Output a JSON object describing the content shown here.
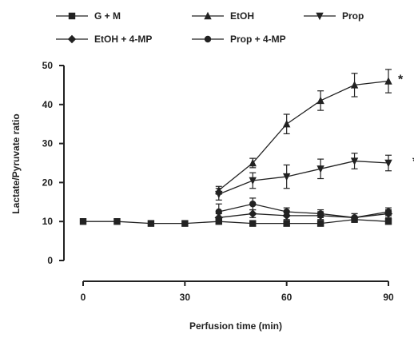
{
  "chart_data": {
    "type": "line",
    "xlabel": "Perfusion time (min)",
    "ylabel": "Lactate/Pyruvate ratio",
    "xlim": [
      0,
      90
    ],
    "ylim": [
      0,
      50
    ],
    "xticks": [
      0,
      30,
      60,
      90
    ],
    "yticks": [
      0,
      10,
      20,
      30,
      40,
      50
    ],
    "grid": false,
    "legend_position": "top",
    "series": [
      {
        "name": "G + M",
        "marker": "square",
        "x": [
          0,
          10,
          20,
          30,
          40,
          50,
          60,
          70,
          80,
          90
        ],
        "y": [
          10,
          10,
          9.5,
          9.5,
          10,
          9.5,
          9.5,
          9.5,
          10.5,
          10
        ],
        "err": [
          0,
          0,
          0,
          0,
          0.5,
          0.5,
          0.5,
          0.5,
          0.5,
          0.5
        ]
      },
      {
        "name": "EtOH",
        "marker": "triangle-up",
        "x": [
          40,
          50,
          60,
          70,
          80,
          90
        ],
        "y": [
          18,
          25,
          35,
          41,
          45,
          46
        ],
        "err": [
          1.0,
          1.2,
          2.5,
          2.5,
          3.0,
          3.0
        ]
      },
      {
        "name": "Prop",
        "marker": "triangle-down",
        "x": [
          40,
          50,
          60,
          70,
          80,
          90
        ],
        "y": [
          17,
          20.5,
          21.5,
          23.5,
          25.5,
          25
        ],
        "err": [
          1.5,
          2.0,
          3.0,
          2.5,
          2.0,
          2.0
        ]
      },
      {
        "name": "EtOH + 4-MP",
        "marker": "diamond",
        "x": [
          40,
          50,
          60,
          70,
          80,
          90
        ],
        "y": [
          11,
          12,
          11.5,
          11.5,
          11,
          12
        ],
        "err": [
          1.0,
          1.0,
          1.0,
          1.0,
          1.0,
          1.0
        ]
      },
      {
        "name": "Prop + 4-MP",
        "marker": "circle",
        "x": [
          40,
          50,
          60,
          70,
          80,
          90
        ],
        "y": [
          12.5,
          14.5,
          12.5,
          12,
          11,
          12.5
        ],
        "err": [
          2.0,
          1.5,
          1.0,
          1.0,
          1.0,
          1.0
        ]
      }
    ],
    "annotations": [
      {
        "text": "*",
        "x": 90,
        "y": 47
      },
      {
        "text": "*",
        "x": 90,
        "y": 26
      }
    ],
    "colors": {
      "ink": "#222222"
    }
  }
}
